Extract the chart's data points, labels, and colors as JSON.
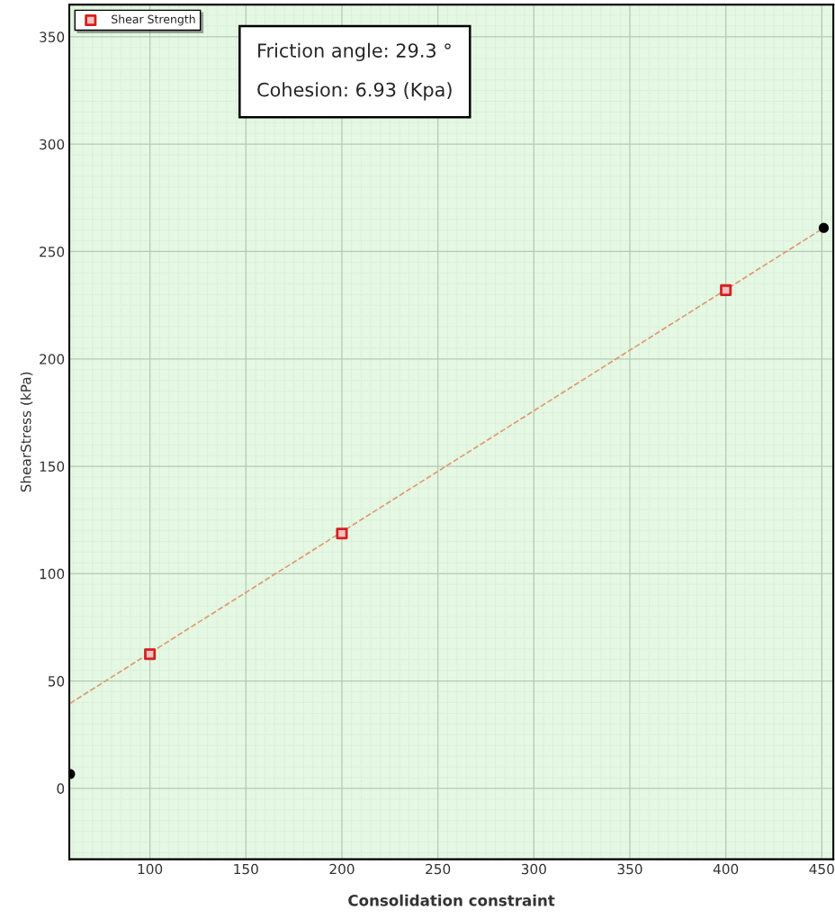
{
  "chart_data": {
    "type": "scatter",
    "xlabel": "Consolidation constraint",
    "ylabel": "ShearStress (kPa)",
    "xlim": [
      58,
      456
    ],
    "xticks": [
      100,
      150,
      200,
      250,
      300,
      350,
      400,
      450
    ],
    "ylim": [
      -33,
      365
    ],
    "yticks": [
      0,
      50,
      100,
      150,
      200,
      250,
      300,
      350
    ],
    "grid": true,
    "legend": "top left",
    "annotations": [
      "Friction angle: 29.3 °",
      "Cohesion: 6.93 (Kpa)"
    ],
    "series": [
      {
        "type": "line",
        "color": "#e09a6a",
        "line_style": "dashed",
        "marker": "none",
        "x": [
          58.4,
          451
        ],
        "values": [
          39.6,
          261
        ]
      },
      {
        "name": "Shear Strength",
        "color": "#d42020",
        "marker": "square",
        "x": [
          100,
          200,
          400
        ],
        "values": [
          62.5,
          118.7,
          232
        ]
      },
      {
        "color": "#000000",
        "marker": "circle",
        "x": [
          58.4,
          451
        ],
        "values": [
          6.7,
          261
        ]
      }
    ]
  }
}
